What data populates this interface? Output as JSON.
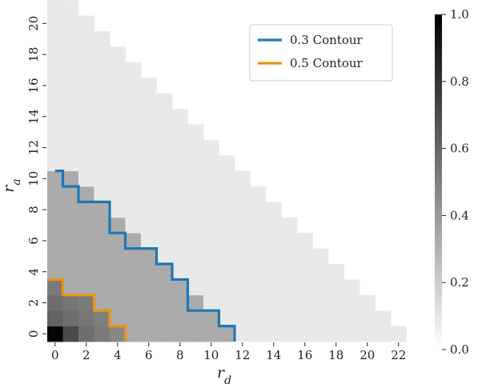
{
  "chart_data": {
    "type": "heatmap",
    "xlabel": "r_d",
    "ylabel": "r_a",
    "x_ticks": [
      "0",
      "2",
      "4",
      "6",
      "8",
      "10",
      "12",
      "14",
      "16",
      "18",
      "20",
      "22"
    ],
    "y_ticks": [
      "0",
      "2",
      "4",
      "6",
      "8",
      "10",
      "12",
      "14",
      "16",
      "18",
      "20"
    ],
    "x_range": [
      0,
      22
    ],
    "y_range": [
      0,
      20
    ],
    "colormap": "Greys",
    "colorbar": {
      "min": 0.0,
      "max": 1.0,
      "ticks": [
        "0.0",
        "0.2",
        "0.4",
        "0.6",
        "0.8",
        "1.0"
      ]
    },
    "grid": false,
    "legend_position": "top-right",
    "cells": [
      [
        0.98,
        0.7,
        0.55,
        0.5,
        0.45,
        0.3,
        0.3,
        0.3,
        0.3,
        0.3,
        0.3,
        0.3,
        0.05,
        0.05,
        0.05,
        0.05,
        0.05,
        0.05,
        0.05,
        0.05,
        0.05,
        0.05,
        0.05
      ],
      [
        0.6,
        0.55,
        0.52,
        0.48,
        0.3,
        0.3,
        0.3,
        0.3,
        0.3,
        0.3,
        0.3,
        0.05,
        0.05,
        0.05,
        0.05,
        0.05,
        0.05,
        0.05,
        0.05,
        0.05,
        0.05,
        0.05
      ],
      [
        0.55,
        0.52,
        0.5,
        0.3,
        0.3,
        0.3,
        0.3,
        0.3,
        0.3,
        0.3,
        0.05,
        0.05,
        0.05,
        0.05,
        0.05,
        0.05,
        0.05,
        0.05,
        0.05,
        0.05,
        0.05
      ],
      [
        0.5,
        0.3,
        0.3,
        0.3,
        0.3,
        0.3,
        0.3,
        0.3,
        0.3,
        0.05,
        0.05,
        0.05,
        0.05,
        0.05,
        0.05,
        0.05,
        0.05,
        0.05,
        0.05,
        0.05
      ],
      [
        0.3,
        0.3,
        0.3,
        0.3,
        0.3,
        0.3,
        0.3,
        0.3,
        0.05,
        0.05,
        0.05,
        0.05,
        0.05,
        0.05,
        0.05,
        0.05,
        0.05,
        0.05,
        0.05
      ],
      [
        0.3,
        0.3,
        0.3,
        0.3,
        0.3,
        0.3,
        0.3,
        0.05,
        0.05,
        0.05,
        0.05,
        0.05,
        0.05,
        0.05,
        0.05,
        0.05,
        0.05,
        0.05
      ],
      [
        0.3,
        0.3,
        0.3,
        0.3,
        0.3,
        0.3,
        0.05,
        0.05,
        0.05,
        0.05,
        0.05,
        0.05,
        0.05,
        0.05,
        0.05,
        0.05,
        0.05
      ],
      [
        0.3,
        0.3,
        0.3,
        0.3,
        0.3,
        0.05,
        0.05,
        0.05,
        0.05,
        0.05,
        0.05,
        0.05,
        0.05,
        0.05,
        0.05,
        0.05
      ],
      [
        0.3,
        0.3,
        0.3,
        0.3,
        0.05,
        0.05,
        0.05,
        0.05,
        0.05,
        0.05,
        0.05,
        0.05,
        0.05,
        0.05,
        0.05
      ],
      [
        0.3,
        0.3,
        0.3,
        0.05,
        0.05,
        0.05,
        0.05,
        0.05,
        0.05,
        0.05,
        0.05,
        0.05,
        0.05,
        0.05
      ],
      [
        0.3,
        0.3,
        0.05,
        0.05,
        0.05,
        0.05,
        0.05,
        0.05,
        0.05,
        0.05,
        0.05,
        0.05,
        0.05
      ],
      [
        0.05,
        0.05,
        0.05,
        0.05,
        0.05,
        0.05,
        0.05,
        0.05,
        0.05,
        0.05,
        0.05,
        0.05
      ],
      [
        0.05,
        0.05,
        0.05,
        0.05,
        0.05,
        0.05,
        0.05,
        0.05,
        0.05,
        0.05,
        0.05
      ],
      [
        0.05,
        0.05,
        0.05,
        0.05,
        0.05,
        0.05,
        0.05,
        0.05,
        0.05,
        0.05
      ],
      [
        0.05,
        0.05,
        0.05,
        0.05,
        0.05,
        0.05,
        0.05,
        0.05,
        0.05
      ],
      [
        0.05,
        0.05,
        0.05,
        0.05,
        0.05,
        0.05,
        0.05,
        0.05
      ],
      [
        0.05,
        0.05,
        0.05,
        0.05,
        0.05,
        0.05,
        0.05
      ],
      [
        0.05,
        0.05,
        0.05,
        0.05,
        0.05,
        0.05
      ],
      [
        0.05,
        0.05,
        0.05,
        0.05,
        0.05
      ],
      [
        0.05,
        0.05,
        0.05,
        0.05
      ],
      [
        0.05,
        0.05,
        0.05
      ],
      [
        0.05,
        0.05
      ]
    ],
    "contours": [
      {
        "name": "0.3 Contour",
        "color": "#1f77b4",
        "level": 0.3,
        "points": [
          [
            0,
            10.5
          ],
          [
            0.5,
            10.5
          ],
          [
            0.5,
            9.5
          ],
          [
            1.5,
            9.5
          ],
          [
            1.5,
            8.5
          ],
          [
            3.5,
            8.5
          ],
          [
            3.5,
            6.5
          ],
          [
            4.5,
            6.5
          ],
          [
            4.5,
            5.5
          ],
          [
            6.5,
            5.5
          ],
          [
            6.5,
            4.5
          ],
          [
            7.5,
            4.5
          ],
          [
            7.5,
            3.5
          ],
          [
            8.5,
            3.5
          ],
          [
            8.5,
            1.5
          ],
          [
            10.5,
            1.5
          ],
          [
            10.5,
            0.5
          ],
          [
            11.5,
            0.5
          ],
          [
            11.5,
            -0.5
          ]
        ]
      },
      {
        "name": "0.5 Contour",
        "color": "#e69512",
        "level": 0.5,
        "points": [
          [
            -0.5,
            3.5
          ],
          [
            0.5,
            3.5
          ],
          [
            0.5,
            2.5
          ],
          [
            2.5,
            2.5
          ],
          [
            2.5,
            1.5
          ],
          [
            3.5,
            1.5
          ],
          [
            3.5,
            0.5
          ],
          [
            4.5,
            0.5
          ],
          [
            4.5,
            -0.5
          ]
        ]
      }
    ]
  }
}
